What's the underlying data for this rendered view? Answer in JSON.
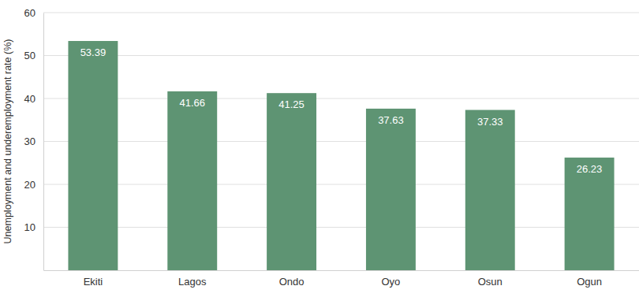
{
  "chart_data": {
    "type": "bar",
    "y_label": "Unemployment and underemployment rate (%)",
    "categories": [
      "Ekiti",
      "Lagos",
      "Ondo",
      "Oyo",
      "Osun",
      "Ogun"
    ],
    "values": [
      53.39,
      41.66,
      41.25,
      37.63,
      37.33,
      26.23
    ],
    "color": "#5e9473",
    "ylim": [
      0,
      60
    ],
    "yticks": [
      10,
      20,
      30,
      40,
      50,
      60
    ],
    "grid": true,
    "data_labels": true
  }
}
